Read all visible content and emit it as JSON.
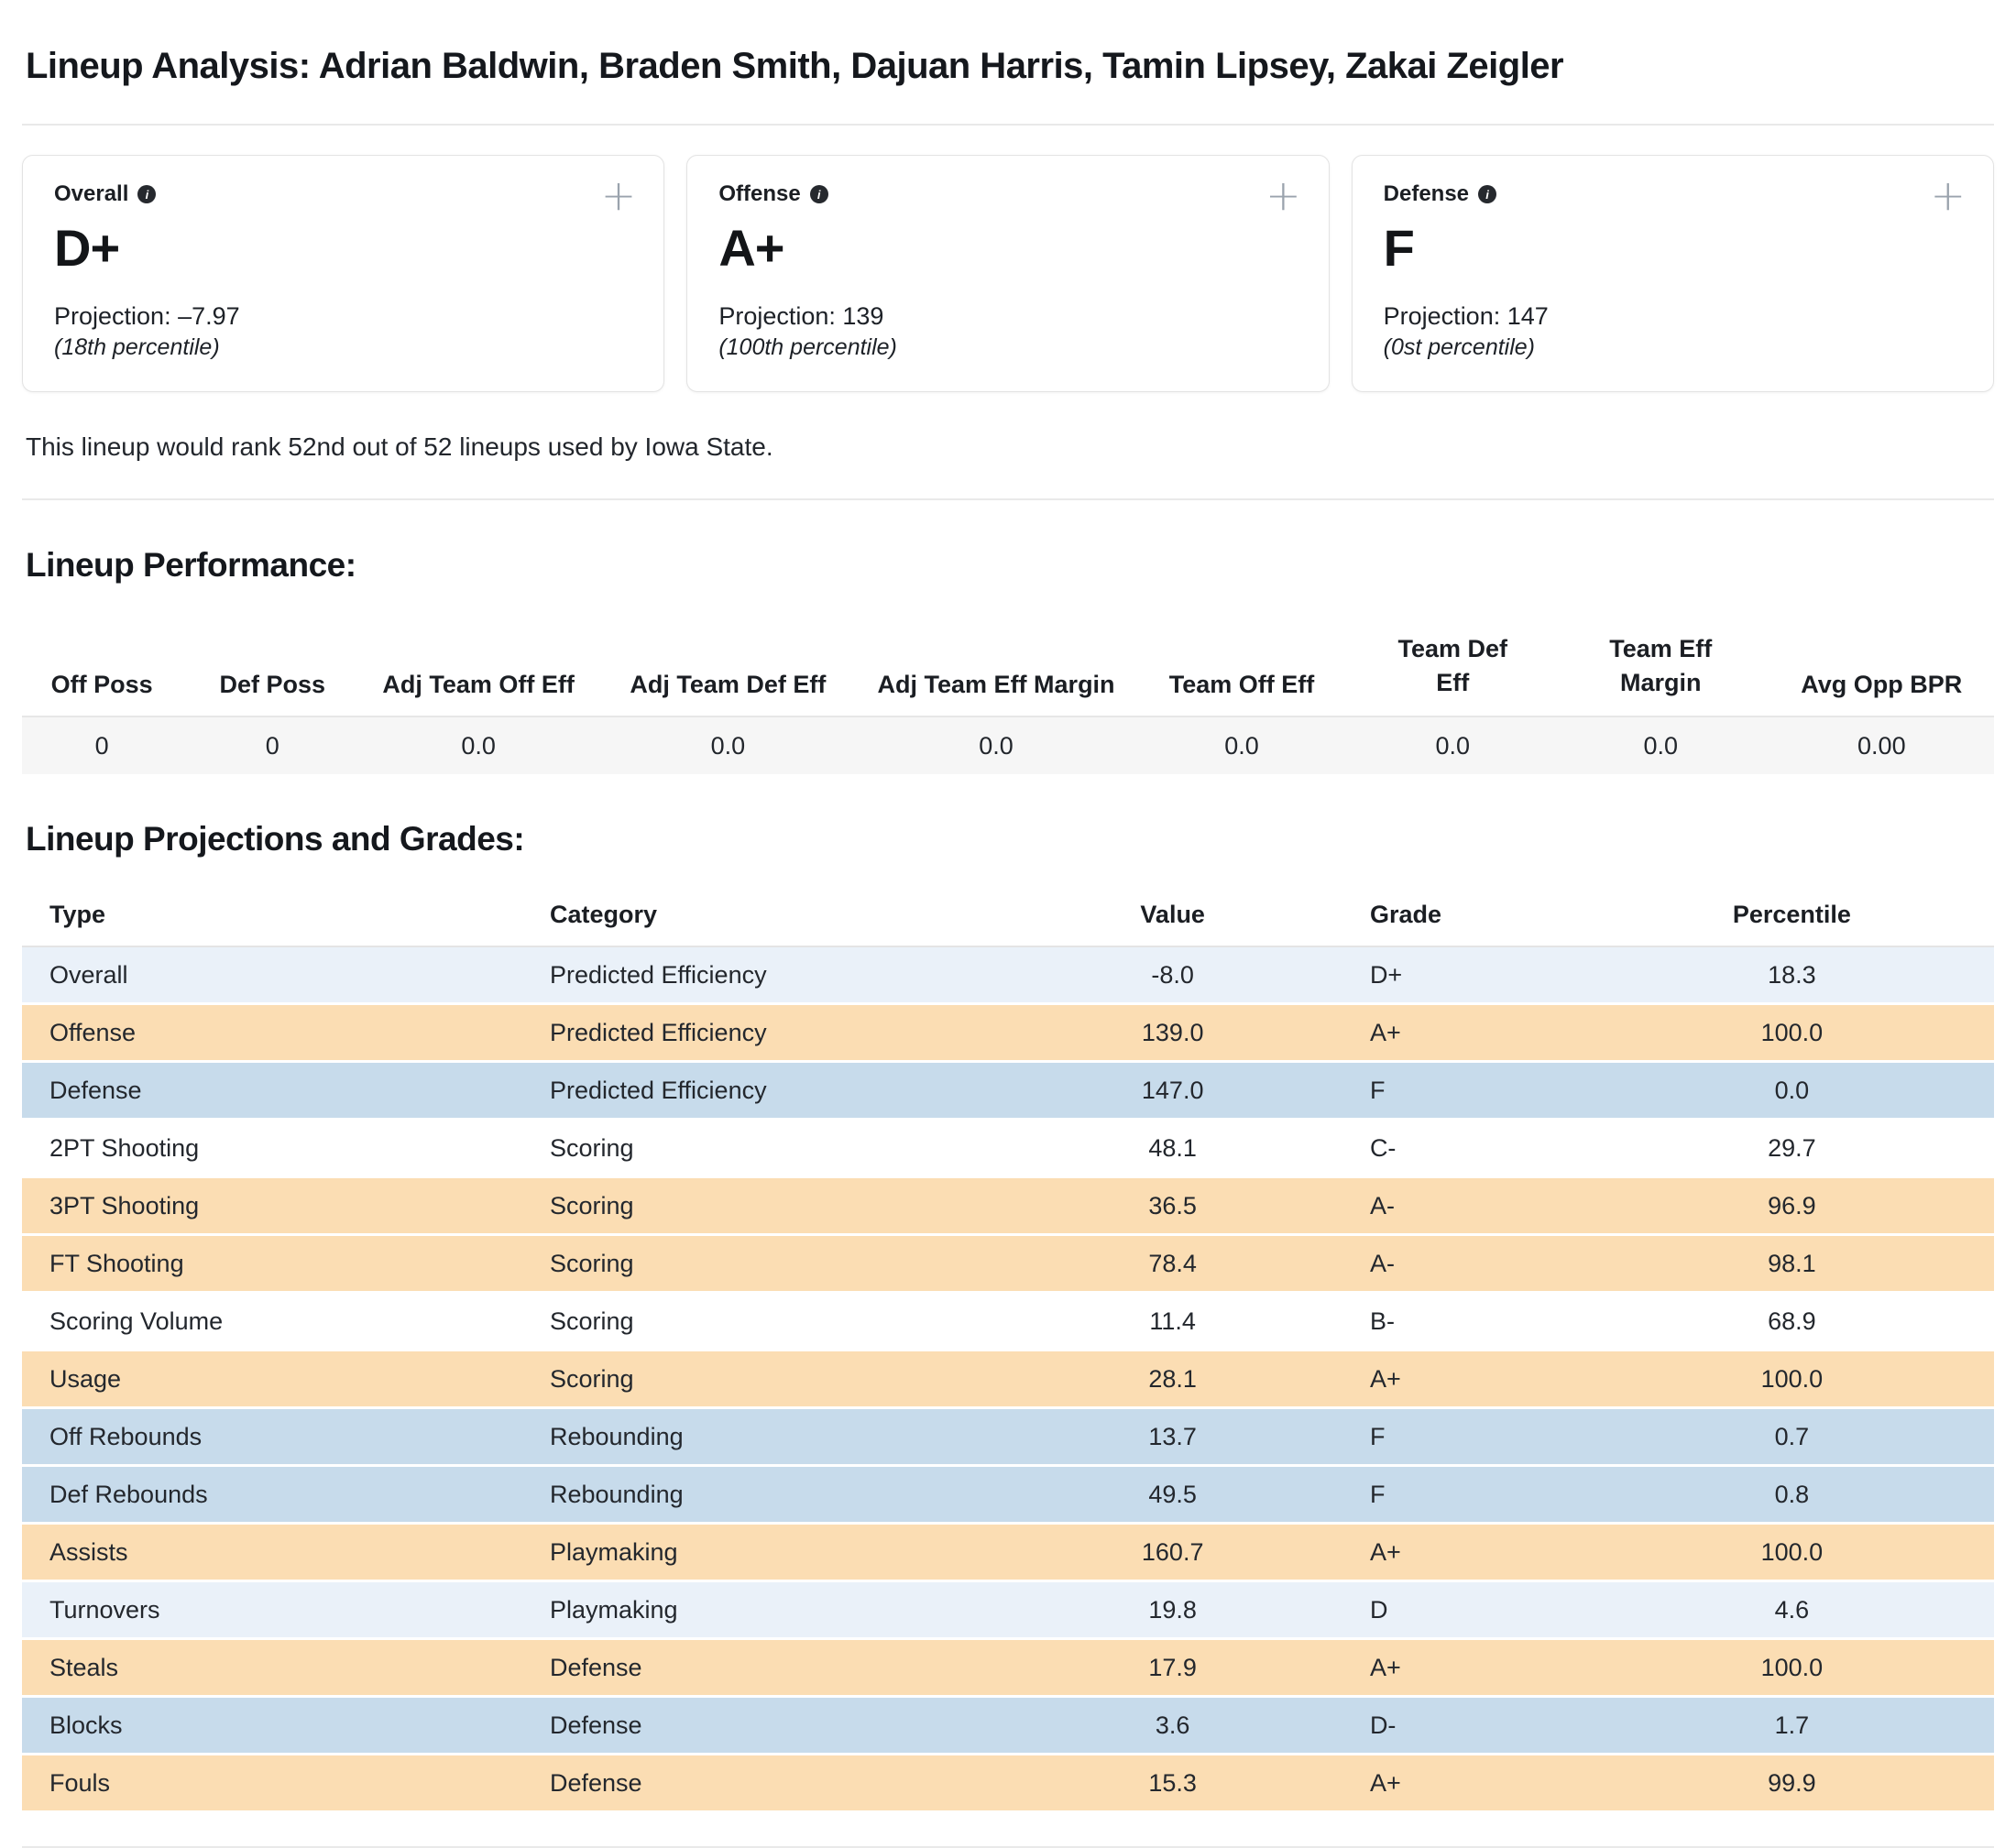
{
  "page": {
    "title": "Lineup Analysis: Adrian Baldwin, Braden Smith, Dajuan Harris, Tamin Lipsey, Zakai Zeigler",
    "rank_note": "This lineup would rank 52nd out of 52 lineups used by Iowa State."
  },
  "icons": {
    "info": "i",
    "expand": "+"
  },
  "cards": [
    {
      "label": "Overall",
      "grade": "D+",
      "projection": "Projection: –7.97",
      "percentile": "(18th percentile)"
    },
    {
      "label": "Offense",
      "grade": "A+",
      "projection": "Projection: 139",
      "percentile": "(100th percentile)"
    },
    {
      "label": "Defense",
      "grade": "F",
      "projection": "Projection: 147",
      "percentile": "(0st percentile)"
    }
  ],
  "performance": {
    "heading": "Lineup Performance:",
    "columns": [
      "Off Poss",
      "Def Poss",
      "Adj Team Off Eff",
      "Adj Team Def Eff",
      "Adj Team Eff Margin",
      "Team Off Eff",
      "Team Def Eff",
      "Team Eff Margin",
      "Avg Opp BPR"
    ],
    "values": [
      "0",
      "0",
      "0.0",
      "0.0",
      "0.0",
      "0.0",
      "0.0",
      "0.0",
      "0.00"
    ]
  },
  "projections": {
    "heading": "Lineup Projections and Grades:",
    "columns": [
      "Type",
      "Category",
      "Value",
      "Grade",
      "Percentile"
    ],
    "rows": [
      {
        "type": "Overall",
        "category": "Predicted Efficiency",
        "value": "-8.0",
        "grade": "D+",
        "percentile": "18.3",
        "tone": "pale_blue"
      },
      {
        "type": "Offense",
        "category": "Predicted Efficiency",
        "value": "139.0",
        "grade": "A+",
        "percentile": "100.0",
        "tone": "orange"
      },
      {
        "type": "Defense",
        "category": "Predicted Efficiency",
        "value": "147.0",
        "grade": "F",
        "percentile": "0.0",
        "tone": "blue"
      },
      {
        "type": "2PT Shooting",
        "category": "Scoring",
        "value": "48.1",
        "grade": "C-",
        "percentile": "29.7",
        "tone": "white"
      },
      {
        "type": "3PT Shooting",
        "category": "Scoring",
        "value": "36.5",
        "grade": "A-",
        "percentile": "96.9",
        "tone": "orange"
      },
      {
        "type": "FT Shooting",
        "category": "Scoring",
        "value": "78.4",
        "grade": "A-",
        "percentile": "98.1",
        "tone": "orange"
      },
      {
        "type": "Scoring Volume",
        "category": "Scoring",
        "value": "11.4",
        "grade": "B-",
        "percentile": "68.9",
        "tone": "white"
      },
      {
        "type": "Usage",
        "category": "Scoring",
        "value": "28.1",
        "grade": "A+",
        "percentile": "100.0",
        "tone": "orange"
      },
      {
        "type": "Off Rebounds",
        "category": "Rebounding",
        "value": "13.7",
        "grade": "F",
        "percentile": "0.7",
        "tone": "blue"
      },
      {
        "type": "Def Rebounds",
        "category": "Rebounding",
        "value": "49.5",
        "grade": "F",
        "percentile": "0.8",
        "tone": "blue"
      },
      {
        "type": "Assists",
        "category": "Playmaking",
        "value": "160.7",
        "grade": "A+",
        "percentile": "100.0",
        "tone": "orange"
      },
      {
        "type": "Turnovers",
        "category": "Playmaking",
        "value": "19.8",
        "grade": "D",
        "percentile": "4.6",
        "tone": "pale_blue"
      },
      {
        "type": "Steals",
        "category": "Defense",
        "value": "17.9",
        "grade": "A+",
        "percentile": "100.0",
        "tone": "orange"
      },
      {
        "type": "Blocks",
        "category": "Defense",
        "value": "3.6",
        "grade": "D-",
        "percentile": "1.7",
        "tone": "blue"
      },
      {
        "type": "Fouls",
        "category": "Defense",
        "value": "15.3",
        "grade": "A+",
        "percentile": "99.9",
        "tone": "orange"
      }
    ]
  },
  "colors": {
    "orange": "#FBDDB3",
    "blue": "#C7DBEB",
    "pale_blue": "#EAF1F9",
    "white": "#FFFFFF",
    "perf_row_bg": "#F6F6F6"
  }
}
